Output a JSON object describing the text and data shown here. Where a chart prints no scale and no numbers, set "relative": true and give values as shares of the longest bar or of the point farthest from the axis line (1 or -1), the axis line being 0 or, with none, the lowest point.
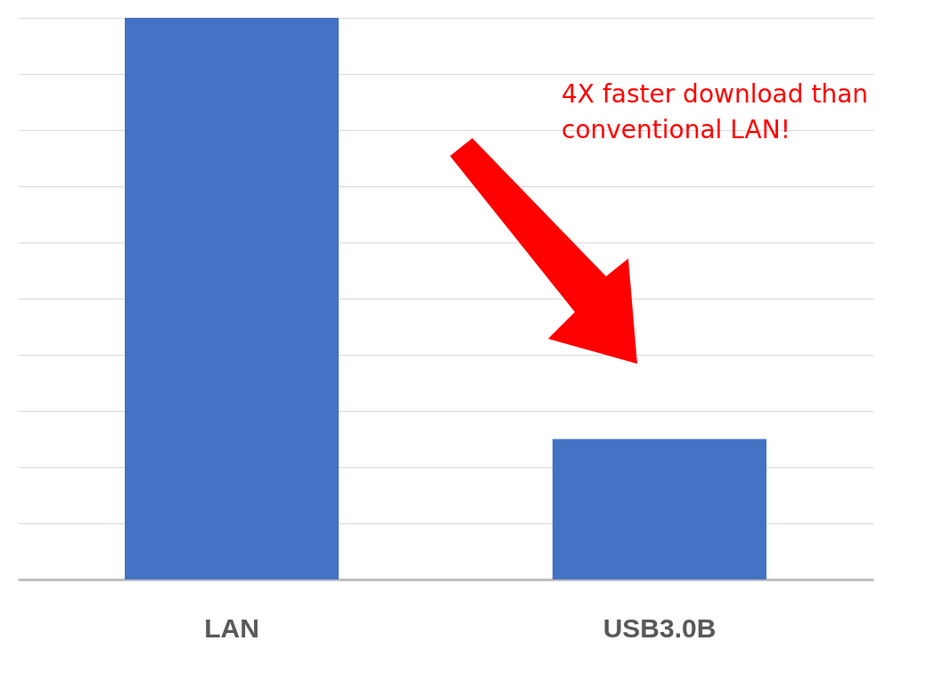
{
  "chart_data": {
    "type": "bar",
    "categories": [
      "LAN",
      "USB3.0B"
    ],
    "values": [
      1,
      0.25
    ],
    "color": "#4472c4",
    "relative": true,
    "grid": "y",
    "annotations": [
      "4X faster download than conventional LAN!"
    ]
  }
}
